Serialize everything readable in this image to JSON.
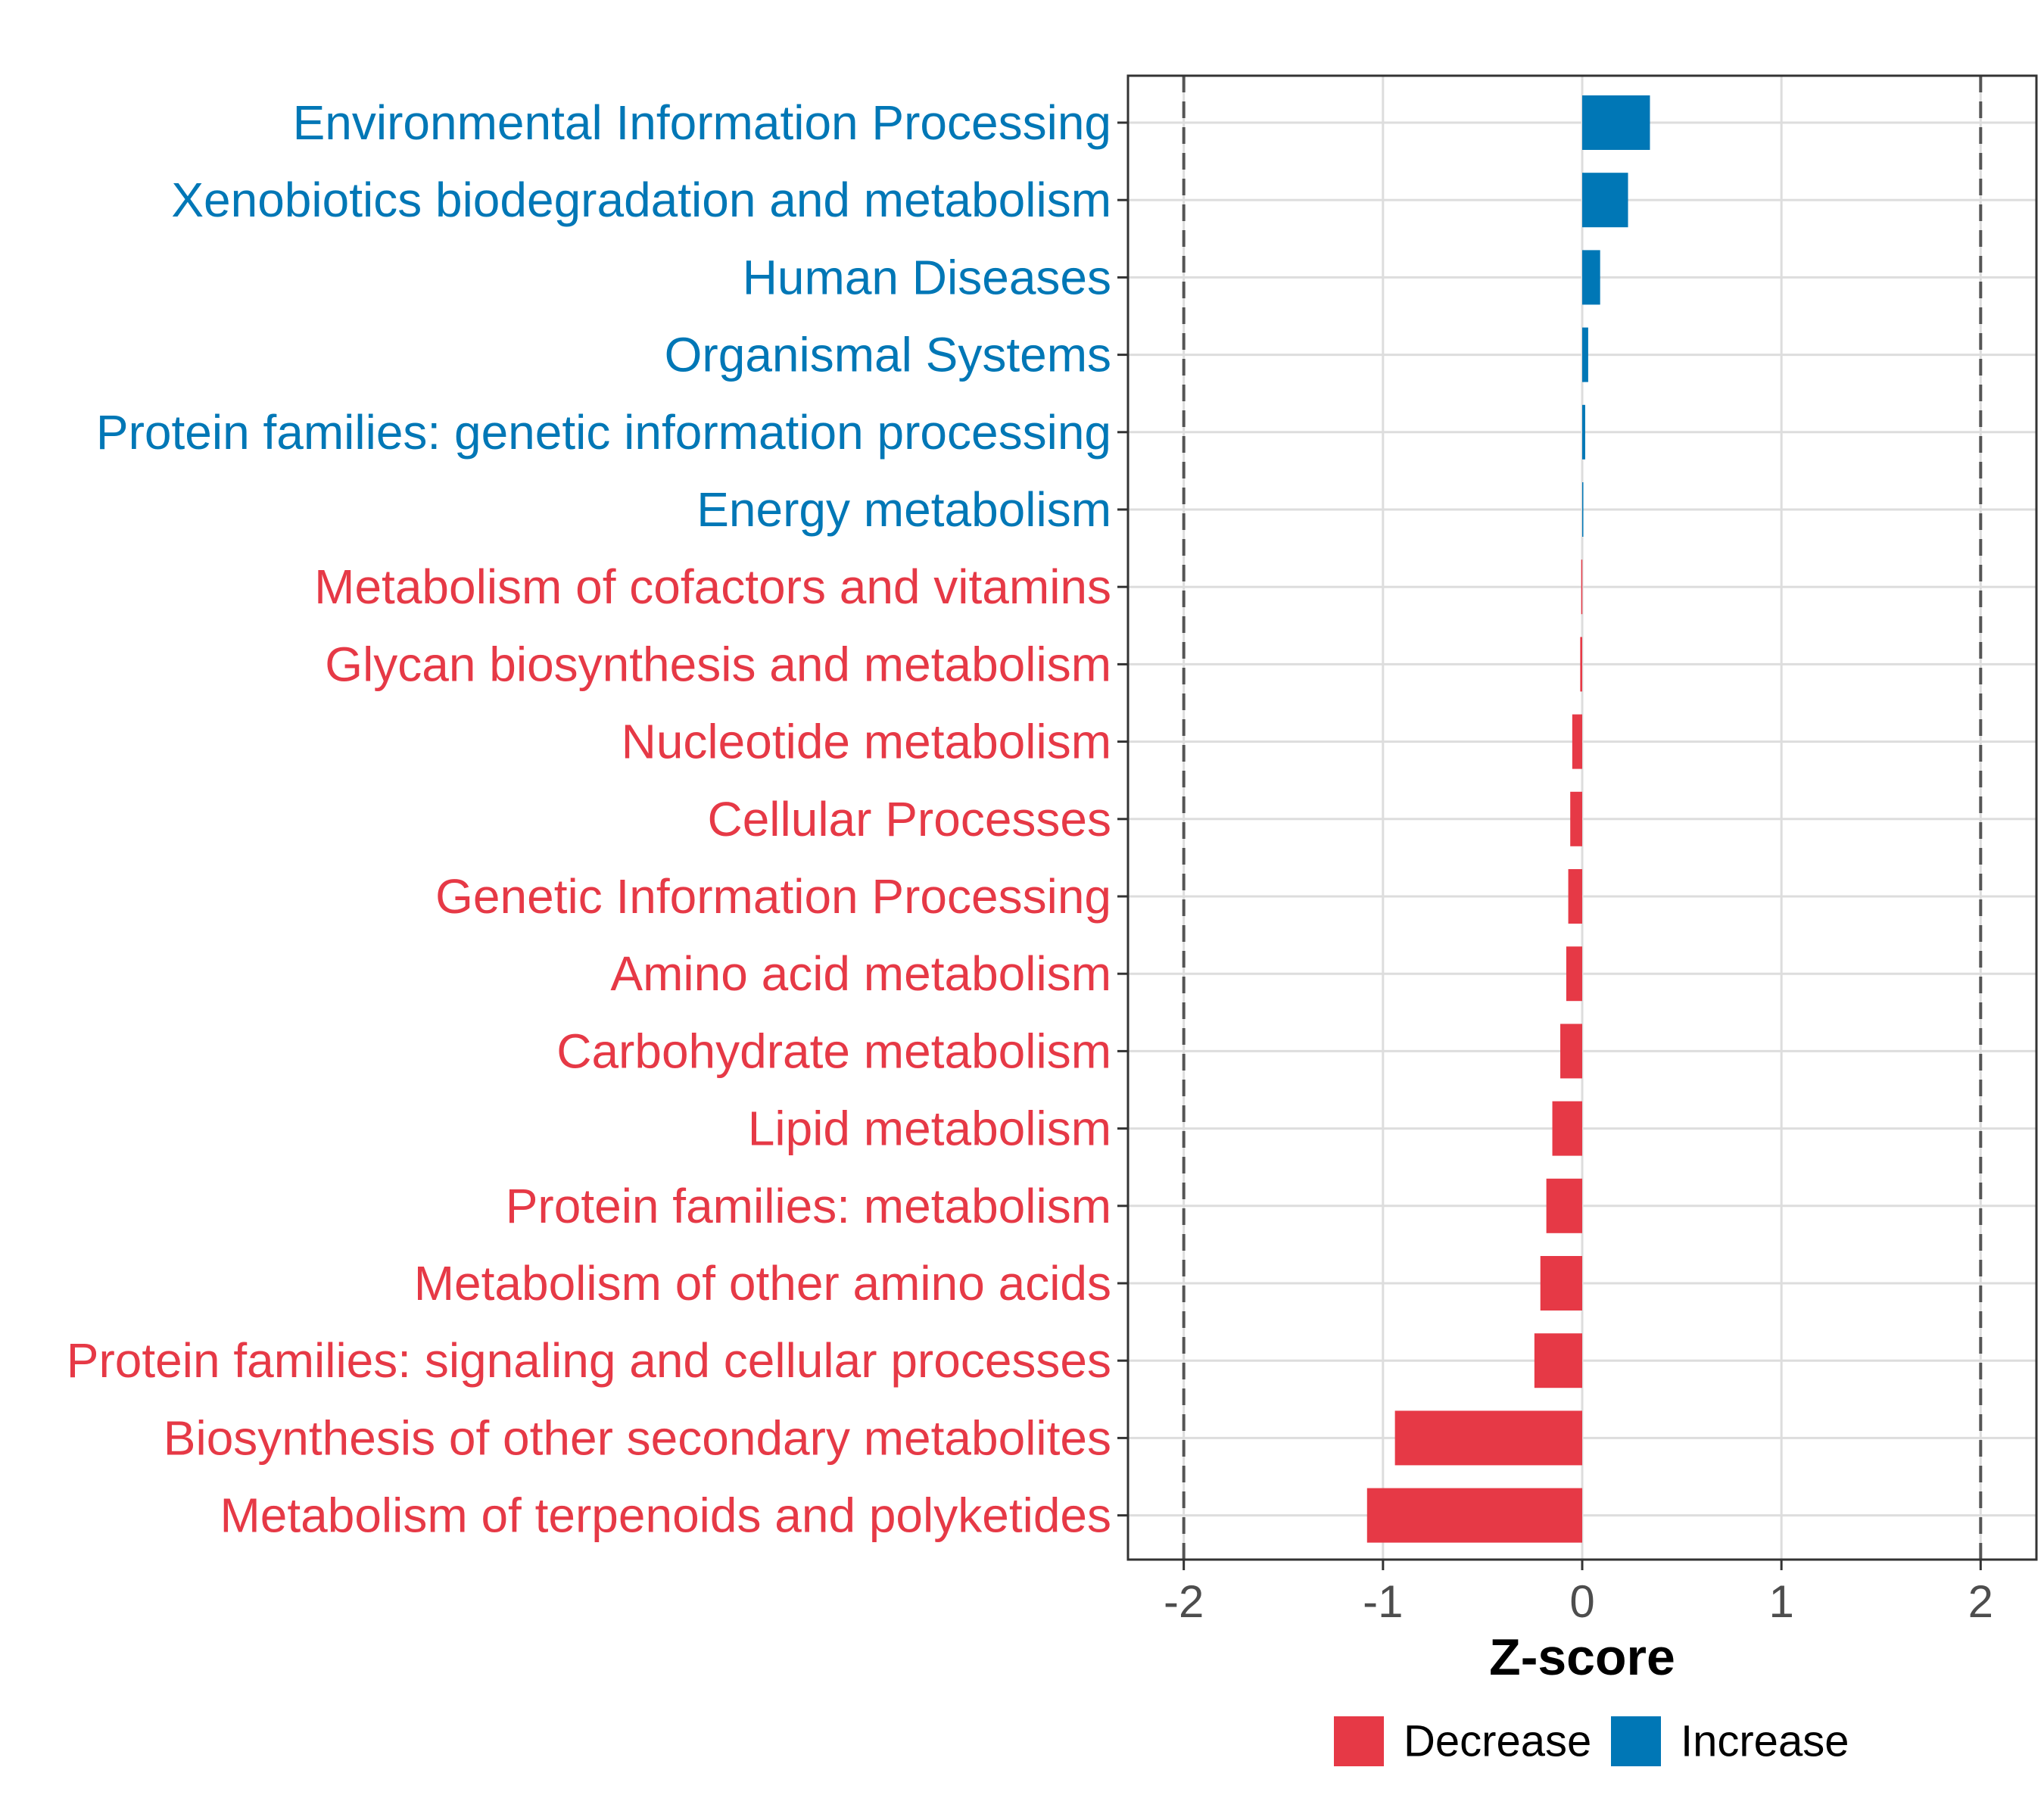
{
  "chart_data": {
    "type": "bar",
    "orientation": "horizontal",
    "xlabel": "Z-score",
    "ylabel": "",
    "xlim": [
      -2.28,
      2.28
    ],
    "xticks": [
      -2,
      -1,
      0,
      1,
      2
    ],
    "xtick_labels": [
      "-2",
      "-1",
      "0",
      "1",
      "2"
    ],
    "reference_lines": [
      -2,
      2
    ],
    "grid": true,
    "legend_position": "bottom",
    "colors": {
      "Decrease": "#e63946",
      "Increase": "#0077b6"
    },
    "legend": [
      {
        "label": "Decrease",
        "color": "#e63946"
      },
      {
        "label": "Increase",
        "color": "#0077b6"
      }
    ],
    "categories": [
      "Environmental Information Processing",
      "Xenobiotics biodegradation and metabolism",
      "Human Diseases",
      "Organismal Systems",
      "Protein families: genetic information processing",
      "Energy metabolism",
      "Metabolism of cofactors and vitamins",
      "Glycan biosynthesis and metabolism",
      "Nucleotide metabolism",
      "Cellular Processes",
      "Genetic Information Processing",
      "Amino acid metabolism",
      "Carbohydrate metabolism",
      "Lipid metabolism",
      "Protein families: metabolism",
      "Metabolism of other amino acids",
      "Protein families: signaling and cellular processes",
      "Biosynthesis of other secondary metabolites",
      "Metabolism of terpenoids and polyketides"
    ],
    "values": [
      0.34,
      0.23,
      0.09,
      0.03,
      0.015,
      0.005,
      -0.005,
      -0.01,
      -0.05,
      -0.06,
      -0.07,
      -0.08,
      -0.11,
      -0.15,
      -0.18,
      -0.21,
      -0.24,
      -0.94,
      -1.08
    ],
    "groups": [
      "Increase",
      "Increase",
      "Increase",
      "Increase",
      "Increase",
      "Increase",
      "Decrease",
      "Decrease",
      "Decrease",
      "Decrease",
      "Decrease",
      "Decrease",
      "Decrease",
      "Decrease",
      "Decrease",
      "Decrease",
      "Decrease",
      "Decrease",
      "Decrease"
    ]
  }
}
